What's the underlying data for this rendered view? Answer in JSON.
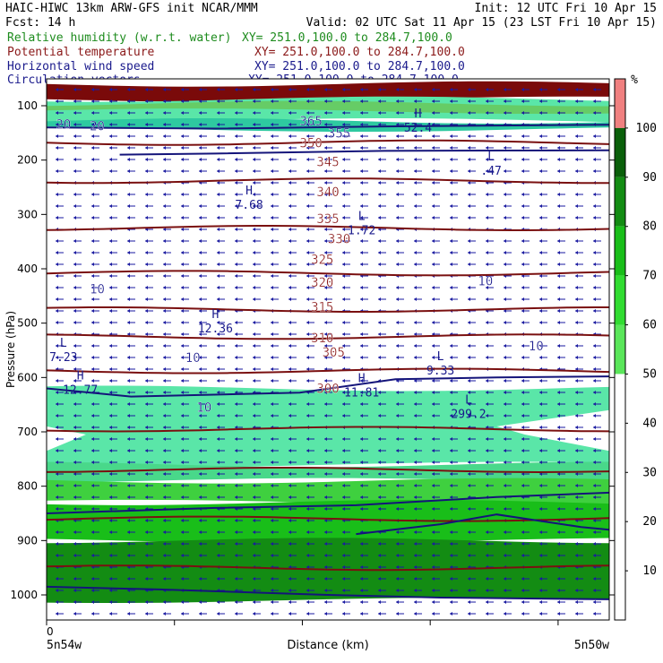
{
  "header": {
    "left_line1": "HAIC-HIWC 13km ARW-GFS init   NCAR/MMM",
    "right_line1": "Init: 12 UTC Fri 10 Apr 15",
    "left_line2": "Fcst:   14 h",
    "right_line2": "Valid: 02 UTC Sat 11 Apr 15 (23 LST Fri 10 Apr 15)"
  },
  "fields": [
    {
      "name": "Relative humidity (w.r.t. water)",
      "xy": "XY= 251.0,100.0 to 284.7,100.0",
      "color": "#1e8c1e"
    },
    {
      "name": "Potential temperature",
      "xy": "XY= 251.0,100.0 to 284.7,100.0",
      "color": "#8b1a1a"
    },
    {
      "name": "Horizontal wind speed",
      "xy": "XY= 251.0,100.0 to 284.7,100.0",
      "color": "#1a1a8c"
    },
    {
      "name": "Circulation vectors",
      "xy": "XY= 251.0,100.0 to 284.7,100.0",
      "color": "#1a1a8c"
    }
  ],
  "chart_data": {
    "type": "heatmap",
    "ylabel": "Pressure (hPa)",
    "xlabel": "Distance (km)",
    "y_axis": {
      "ticks": [
        100,
        200,
        300,
        400,
        500,
        600,
        700,
        800,
        900,
        1000
      ],
      "range": [
        50,
        1050
      ]
    },
    "x_axis": {
      "tick_labels": [
        "0"
      ],
      "left_label": "5n54w",
      "right_label": "5n50w"
    },
    "colorbar": {
      "unit": "%",
      "labels": [
        10,
        20,
        30,
        40,
        50,
        60,
        70,
        80,
        90,
        100
      ],
      "bands": [
        {
          "from": 100,
          "to": 110,
          "color": "#f08080"
        },
        {
          "from": 90,
          "to": 100,
          "color": "#0a5f0a"
        },
        {
          "from": 80,
          "to": 90,
          "color": "#138c13"
        },
        {
          "from": 70,
          "to": 80,
          "color": "#19be19"
        },
        {
          "from": 60,
          "to": 70,
          "color": "#31dc31"
        },
        {
          "from": 50,
          "to": 60,
          "color": "#5ae65a"
        },
        {
          "from": 0,
          "to": 50,
          "color": "#ffffff"
        }
      ]
    },
    "rh_layers": [
      {
        "p_top": 60,
        "p_bot": 88,
        "color": "#7a0a0a"
      },
      {
        "p_top": 88,
        "p_bot": 128,
        "color": "#5ae6a8"
      },
      {
        "p_top": 96,
        "p_bot": 110,
        "color": "#66cc66"
      },
      {
        "p_top": 128,
        "p_bot": 143,
        "color": "#2ec9a0"
      },
      {
        "p_top": 620,
        "p_bot": 760,
        "color": "#5ae6a8"
      },
      {
        "p_top": 760,
        "p_bot": 790,
        "color": "#49d88a"
      },
      {
        "p_top": 790,
        "p_bot": 830,
        "color": "#3fd03f"
      },
      {
        "p_top": 830,
        "p_bot": 900,
        "color": "#19be19"
      },
      {
        "p_top": 900,
        "p_bot": 1010,
        "color": "#138c13"
      }
    ],
    "theta_contours": {
      "values": [
        350,
        345,
        340,
        335,
        330,
        325,
        320,
        315,
        310,
        305,
        300
      ],
      "pressures": [
        168,
        238,
        325,
        408,
        475,
        525,
        588,
        695,
        770,
        860,
        950
      ]
    },
    "contour_labels": [
      {
        "text": "350",
        "p": 168,
        "x": 0.47,
        "color": "#8b1a1a"
      },
      {
        "text": "345",
        "p": 203,
        "x": 0.5,
        "color": "#8b1a1a"
      },
      {
        "text": "340",
        "p": 258,
        "x": 0.5,
        "color": "#8b1a1a"
      },
      {
        "text": "335",
        "p": 308,
        "x": 0.5,
        "color": "#8b1a1a"
      },
      {
        "text": "330",
        "p": 345,
        "x": 0.52,
        "color": "#8b1a1a"
      },
      {
        "text": "325",
        "p": 383,
        "x": 0.49,
        "color": "#8b1a1a"
      },
      {
        "text": "320",
        "p": 425,
        "x": 0.49,
        "color": "#8b1a1a"
      },
      {
        "text": "315",
        "p": 470,
        "x": 0.49,
        "color": "#8b1a1a"
      },
      {
        "text": "310",
        "p": 527,
        "x": 0.49,
        "color": "#8b1a1a"
      },
      {
        "text": "305",
        "p": 553,
        "x": 0.51,
        "color": "#8b1a1a"
      },
      {
        "text": "300",
        "p": 620,
        "x": 0.5,
        "color": "#8b1a1a"
      },
      {
        "text": "355",
        "p": 150,
        "x": 0.52,
        "color": "#1a1a8c"
      },
      {
        "text": "365",
        "p": 128,
        "x": 0.47,
        "color": "#1a1a8c"
      },
      {
        "text": "10",
        "p": 437,
        "x": 0.09,
        "color": "#1a1a8c"
      },
      {
        "text": "10",
        "p": 422,
        "x": 0.78,
        "color": "#1a1a8c"
      },
      {
        "text": "10",
        "p": 563,
        "x": 0.26,
        "color": "#1a1a8c"
      },
      {
        "text": "10",
        "p": 542,
        "x": 0.87,
        "color": "#1a1a8c"
      },
      {
        "text": "10",
        "p": 655,
        "x": 0.28,
        "color": "#1a1a8c"
      },
      {
        "text": "20",
        "p": 134,
        "x": 0.03,
        "color": "#1a1a8c"
      },
      {
        "text": "20",
        "p": 137,
        "x": 0.09,
        "color": "#1a1a8c"
      }
    ],
    "extrema": [
      {
        "kind": "H",
        "value": "7.68",
        "p": 270,
        "x": 0.36
      },
      {
        "kind": "L",
        "value": "1.72",
        "p": 317,
        "x": 0.56
      },
      {
        "kind": "L",
        "value": ".47",
        "p": 207,
        "x": 0.79
      },
      {
        "kind": "H",
        "value": "12.36",
        "p": 497,
        "x": 0.3
      },
      {
        "kind": "L",
        "value": "7.23",
        "p": 550,
        "x": 0.03
      },
      {
        "kind": "L",
        "value": "9.33",
        "p": 575,
        "x": 0.7
      },
      {
        "kind": "H",
        "value": "12.77",
        "p": 610,
        "x": 0.06
      },
      {
        "kind": "H",
        "value": "11.81",
        "p": 615,
        "x": 0.56
      },
      {
        "kind": "L",
        "value": "299.2",
        "p": 655,
        "x": 0.75
      },
      {
        "kind": "H",
        "value": "52.4",
        "p": 128,
        "x": 0.66
      }
    ]
  }
}
